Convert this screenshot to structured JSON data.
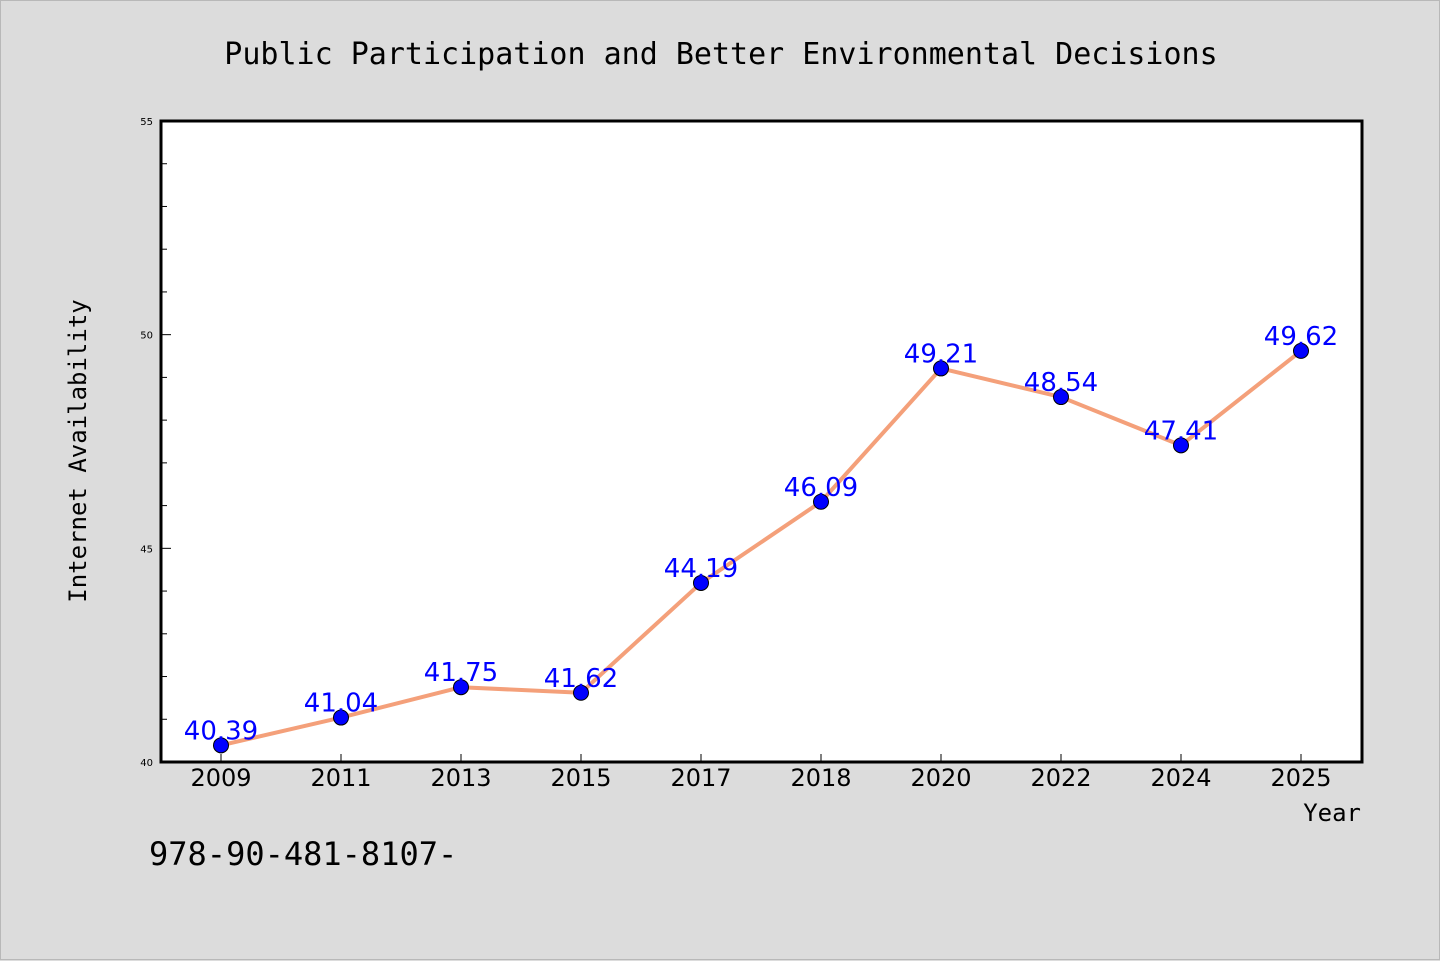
{
  "chart_data": {
    "type": "line",
    "title": "Public Participation and Better Environmental Decisions",
    "xlabel": "Year",
    "ylabel": "Internet Availability",
    "categories": [
      "2009",
      "2011",
      "2013",
      "2015",
      "2017",
      "2018",
      "2020",
      "2022",
      "2024",
      "2025"
    ],
    "values": [
      40.39,
      41.04,
      41.75,
      41.62,
      44.19,
      46.09,
      49.21,
      48.54,
      47.41,
      49.62
    ],
    "data_labels": [
      "40.39",
      "41.04",
      "41.75",
      "41.62",
      "44.19",
      "46.09",
      "49.21",
      "48.54",
      "47.41",
      "49.62"
    ],
    "ylim": [
      40,
      55
    ],
    "yticks": [
      "40",
      "45",
      "50",
      "55"
    ],
    "grid": false,
    "line_color": "#f4a07a",
    "marker_color": "#0000ff",
    "label_color": "#0000ff"
  },
  "footer_text": "978-90-481-8107-"
}
